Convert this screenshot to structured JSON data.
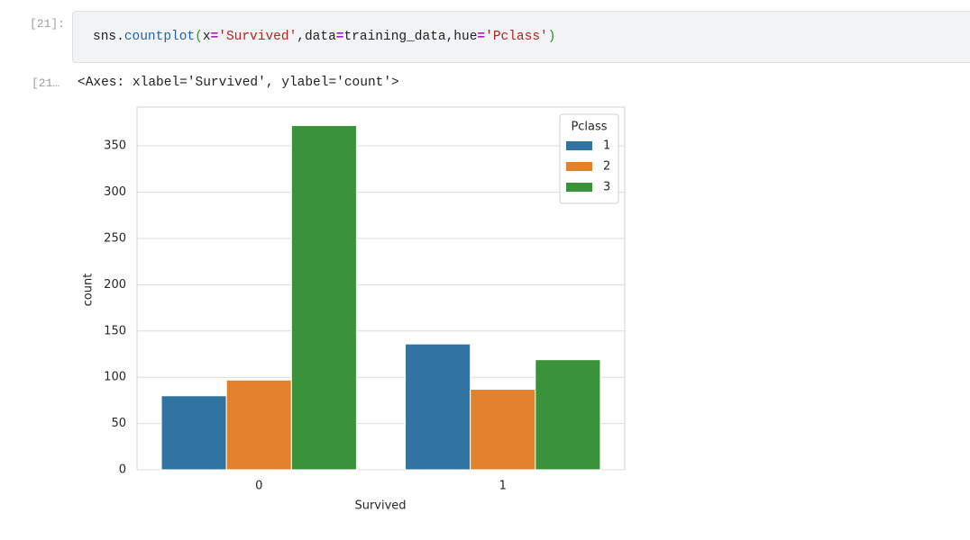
{
  "input_prompt": "[21]:",
  "code_tokens": [
    "sns.",
    "countplot",
    "(",
    "x",
    "=",
    "'Survived'",
    ",data",
    "=",
    "training_data,hue",
    "=",
    "'Pclass'",
    ")"
  ],
  "output_prompt": "[21…",
  "output_text": "<Axes: xlabel='Survived', ylabel='count'>",
  "chart_data": {
    "type": "bar",
    "x_label": "Survived",
    "y_label": "count",
    "categories": [
      "0",
      "1"
    ],
    "series": [
      {
        "name": "1",
        "color": "#3274a1",
        "values": [
          80,
          136
        ]
      },
      {
        "name": "2",
        "color": "#e1812c",
        "values": [
          97,
          87
        ]
      },
      {
        "name": "3",
        "color": "#3a923a",
        "values": [
          372,
          119
        ]
      }
    ],
    "legend_title": "Pclass",
    "legend_position": "upper right",
    "ylim": [
      0,
      392
    ],
    "yticks": [
      0,
      50,
      100,
      150,
      200,
      250,
      300,
      350
    ],
    "grid": true
  }
}
